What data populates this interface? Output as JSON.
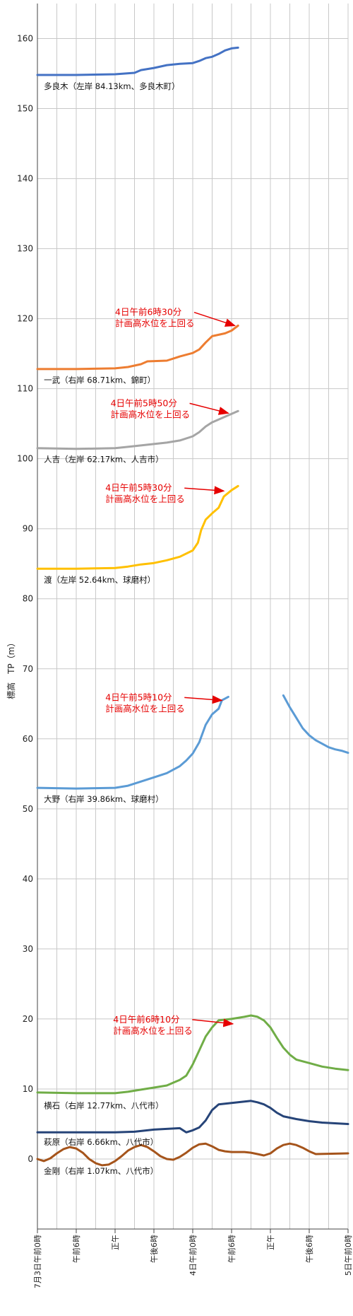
{
  "chart_data": {
    "type": "line",
    "title": "",
    "xlabel": "",
    "ylabel": "標高　TP（m）",
    "ylim": [
      -10,
      165
    ],
    "xlim": [
      0,
      48
    ],
    "yticks": [
      0,
      10,
      20,
      30,
      40,
      50,
      60,
      70,
      80,
      90,
      100,
      110,
      120,
      130,
      140,
      150,
      160
    ],
    "grid": true,
    "x_tick_labels": [
      {
        "x": 0,
        "label": "7月3日午前0時"
      },
      {
        "x": 6,
        "label": "午前6時"
      },
      {
        "x": 12,
        "label": "正午"
      },
      {
        "x": 18,
        "label": "午後6時"
      },
      {
        "x": 24,
        "label": "4日午前0時"
      },
      {
        "x": 30,
        "label": "午前6時"
      },
      {
        "x": 36,
        "label": "正午"
      },
      {
        "x": 42,
        "label": "午後6時"
      },
      {
        "x": 48,
        "label": "5日午前0時"
      }
    ],
    "series": [
      {
        "name": "多良木（左岸 84.13km、多良木町）",
        "color": "#4472c4",
        "points": [
          [
            0,
            154.8
          ],
          [
            6,
            154.8
          ],
          [
            12,
            154.9
          ],
          [
            15,
            155.1
          ],
          [
            16,
            155.5
          ],
          [
            18,
            155.8
          ],
          [
            20,
            156.2
          ],
          [
            22,
            156.4
          ],
          [
            24,
            156.5
          ],
          [
            25,
            156.8
          ],
          [
            26,
            157.2
          ],
          [
            27,
            157.4
          ],
          [
            28,
            157.8
          ],
          [
            29,
            158.3
          ],
          [
            30,
            158.6
          ],
          [
            31,
            158.7
          ]
        ]
      },
      {
        "name": "一武（右岸 68.71km、錦町）",
        "color": "#ed7d31",
        "points": [
          [
            0,
            112.8
          ],
          [
            6,
            112.8
          ],
          [
            12,
            112.9
          ],
          [
            14,
            113.1
          ],
          [
            16,
            113.5
          ],
          [
            17,
            113.9
          ],
          [
            20,
            114.0
          ],
          [
            22,
            114.6
          ],
          [
            24,
            115.1
          ],
          [
            25,
            115.6
          ],
          [
            26,
            116.6
          ],
          [
            27,
            117.5
          ],
          [
            28,
            117.7
          ],
          [
            29,
            117.9
          ],
          [
            30,
            118.3
          ],
          [
            31,
            119.0
          ]
        ]
      },
      {
        "name": "人吉（左岸 62.17km、人吉市）",
        "color": "#a5a5a5",
        "points": [
          [
            0,
            101.5
          ],
          [
            6,
            101.4
          ],
          [
            12,
            101.5
          ],
          [
            14,
            101.7
          ],
          [
            16,
            101.9
          ],
          [
            18,
            102.1
          ],
          [
            20,
            102.3
          ],
          [
            22,
            102.6
          ],
          [
            24,
            103.2
          ],
          [
            25,
            103.8
          ],
          [
            26,
            104.6
          ],
          [
            27,
            105.2
          ],
          [
            28,
            105.6
          ],
          [
            29,
            106.0
          ],
          [
            30,
            106.4
          ],
          [
            31,
            106.8
          ]
        ]
      },
      {
        "name": "渡（左岸 52.64km、球磨村）",
        "color": "#ffc000",
        "points": [
          [
            0,
            84.3
          ],
          [
            6,
            84.3
          ],
          [
            12,
            84.4
          ],
          [
            14,
            84.6
          ],
          [
            16,
            84.9
          ],
          [
            18,
            85.1
          ],
          [
            20,
            85.5
          ],
          [
            22,
            86.0
          ],
          [
            24,
            86.9
          ],
          [
            24.8,
            88.0
          ],
          [
            25.3,
            89.8
          ],
          [
            26,
            91.3
          ],
          [
            27,
            92.2
          ],
          [
            28,
            93.0
          ],
          [
            28.8,
            94.6
          ],
          [
            30,
            95.5
          ],
          [
            31,
            96.1
          ]
        ]
      },
      {
        "name": "大野（右岸 39.86km、球磨村）",
        "color": "#5b9bd5",
        "points": [
          [
            0,
            53.0
          ],
          [
            6,
            52.9
          ],
          [
            12,
            53.0
          ],
          [
            14,
            53.3
          ],
          [
            16,
            53.9
          ],
          [
            18,
            54.5
          ],
          [
            20,
            55.1
          ],
          [
            22,
            56.1
          ],
          [
            23,
            56.9
          ],
          [
            24,
            57.9
          ],
          [
            25,
            59.5
          ],
          [
            26,
            62.0
          ],
          [
            27,
            63.5
          ],
          [
            28,
            64.3
          ],
          [
            28.5,
            65.5
          ],
          [
            29.5,
            66.0
          ],
          null,
          [
            38,
            66.2
          ],
          [
            39,
            64.5
          ],
          [
            40,
            63.0
          ],
          [
            41,
            61.5
          ],
          [
            42,
            60.5
          ],
          [
            43,
            59.8
          ],
          [
            44,
            59.3
          ],
          [
            45,
            58.8
          ],
          [
            46,
            58.5
          ],
          [
            47,
            58.3
          ],
          [
            48,
            58.0
          ]
        ]
      },
      {
        "name": "横石（右岸 12.77km、八代市）",
        "color": "#70ad47",
        "points": [
          [
            0,
            9.5
          ],
          [
            6,
            9.4
          ],
          [
            12,
            9.4
          ],
          [
            14,
            9.6
          ],
          [
            16,
            9.9
          ],
          [
            18,
            10.2
          ],
          [
            20,
            10.5
          ],
          [
            21,
            10.9
          ],
          [
            22,
            11.3
          ],
          [
            23,
            11.9
          ],
          [
            24,
            13.5
          ],
          [
            25,
            15.5
          ],
          [
            26,
            17.5
          ],
          [
            27,
            18.8
          ],
          [
            28,
            19.8
          ],
          [
            30,
            20.0
          ],
          [
            32,
            20.3
          ],
          [
            33,
            20.5
          ],
          [
            34,
            20.3
          ],
          [
            35,
            19.8
          ],
          [
            36,
            18.8
          ],
          [
            37,
            17.3
          ],
          [
            38,
            15.9
          ],
          [
            39,
            14.9
          ],
          [
            40,
            14.2
          ],
          [
            42,
            13.7
          ],
          [
            44,
            13.2
          ],
          [
            46,
            12.9
          ],
          [
            48,
            12.7
          ]
        ]
      },
      {
        "name": "萩原（右岸 6.66km、八代市）",
        "color": "#264478",
        "points": [
          [
            0,
            3.8
          ],
          [
            6,
            3.8
          ],
          [
            12,
            3.8
          ],
          [
            15,
            3.9
          ],
          [
            18,
            4.2
          ],
          [
            20,
            4.3
          ],
          [
            22,
            4.4
          ],
          [
            23,
            3.8
          ],
          [
            24,
            4.1
          ],
          [
            25,
            4.5
          ],
          [
            26,
            5.5
          ],
          [
            27,
            7.0
          ],
          [
            28,
            7.8
          ],
          [
            30,
            8.0
          ],
          [
            32,
            8.2
          ],
          [
            33,
            8.3
          ],
          [
            34,
            8.1
          ],
          [
            35,
            7.8
          ],
          [
            36,
            7.3
          ],
          [
            37,
            6.6
          ],
          [
            38,
            6.1
          ],
          [
            40,
            5.7
          ],
          [
            42,
            5.4
          ],
          [
            44,
            5.2
          ],
          [
            46,
            5.1
          ],
          [
            48,
            5.0
          ]
        ]
      },
      {
        "name": "金剛（右岸 1.07km、八代市）",
        "color": "#a5541b",
        "points": [
          [
            0,
            0.0
          ],
          [
            1,
            -0.3
          ],
          [
            2,
            0.1
          ],
          [
            3,
            0.8
          ],
          [
            4,
            1.4
          ],
          [
            5,
            1.7
          ],
          [
            6,
            1.5
          ],
          [
            7,
            0.9
          ],
          [
            8,
            0.0
          ],
          [
            9,
            -0.6
          ],
          [
            10,
            -0.9
          ],
          [
            11,
            -0.8
          ],
          [
            12,
            -0.3
          ],
          [
            13,
            0.4
          ],
          [
            14,
            1.2
          ],
          [
            15,
            1.7
          ],
          [
            16,
            2.0
          ],
          [
            17,
            1.7
          ],
          [
            18,
            1.1
          ],
          [
            19,
            0.4
          ],
          [
            20,
            0.0
          ],
          [
            21,
            -0.1
          ],
          [
            22,
            0.3
          ],
          [
            23,
            0.9
          ],
          [
            24,
            1.6
          ],
          [
            25,
            2.1
          ],
          [
            26,
            2.2
          ],
          [
            27,
            1.8
          ],
          [
            28,
            1.3
          ],
          [
            29,
            1.1
          ],
          [
            30,
            1.0
          ],
          [
            31,
            1.0
          ],
          [
            32,
            1.0
          ],
          [
            33,
            0.9
          ],
          [
            34,
            0.7
          ],
          [
            35,
            0.5
          ],
          [
            36,
            0.8
          ],
          [
            37,
            1.5
          ],
          [
            38,
            2.0
          ],
          [
            39,
            2.2
          ],
          [
            40,
            2.0
          ],
          [
            41,
            1.6
          ],
          [
            42,
            1.1
          ],
          [
            43,
            0.7
          ],
          [
            48,
            0.8
          ]
        ]
      }
    ],
    "series_labels": [
      {
        "series": 0,
        "text": "多良木（左岸 84.13km、多良木町）",
        "x": 1,
        "y": 152.8
      },
      {
        "series": 1,
        "text": "一武（右岸 68.71km、錦町）",
        "x": 1,
        "y": 110.8
      },
      {
        "series": 2,
        "text": "人吉（左岸 62.17km、人吉市）",
        "x": 1,
        "y": 99.5
      },
      {
        "series": 3,
        "text": "渡（左岸 52.64km、球磨村）",
        "x": 1,
        "y": 82.3
      },
      {
        "series": 4,
        "text": "大野（右岸 39.86km、球磨村）",
        "x": 1,
        "y": 51.0
      },
      {
        "series": 5,
        "text": "横石（右岸 12.77km、八代市）",
        "x": 1,
        "y": 7.2
      },
      {
        "series": 6,
        "text": "萩原（右岸 6.66km、八代市）",
        "x": 1,
        "y": 2.0
      },
      {
        "series": 7,
        "text": "金剛（右岸 1.07km、八代市）",
        "x": 1,
        "y": -2.1
      }
    ],
    "annotations": [
      {
        "line1": "4日午前6時30分",
        "line2": "計画高水位を上回る",
        "x": 12,
        "y": 120.5,
        "arrow_to": [
          30.5,
          119.0
        ]
      },
      {
        "line1": "4日午前5時50分",
        "line2": "計画高水位を上回る",
        "x": 11.3,
        "y": 107.5,
        "arrow_to": [
          29.5,
          106.5
        ]
      },
      {
        "line1": "4日午前5時30分",
        "line2": "計画高水位を上回る",
        "x": 10.5,
        "y": 95.4,
        "arrow_to": [
          28.8,
          95.4
        ]
      },
      {
        "line1": "4日午前5時10分",
        "line2": "計画高水位を上回る",
        "x": 10.5,
        "y": 65.5,
        "arrow_to": [
          28.5,
          65.5
        ]
      },
      {
        "line1": "4日午前6時10分",
        "line2": "計画高水位を上回る",
        "x": 11.7,
        "y": 19.5,
        "arrow_to": [
          30.2,
          19.3
        ]
      }
    ],
    "colors": {
      "annotation": "#e60000",
      "grid": "#c8c8c8",
      "axis": "#444444"
    }
  }
}
